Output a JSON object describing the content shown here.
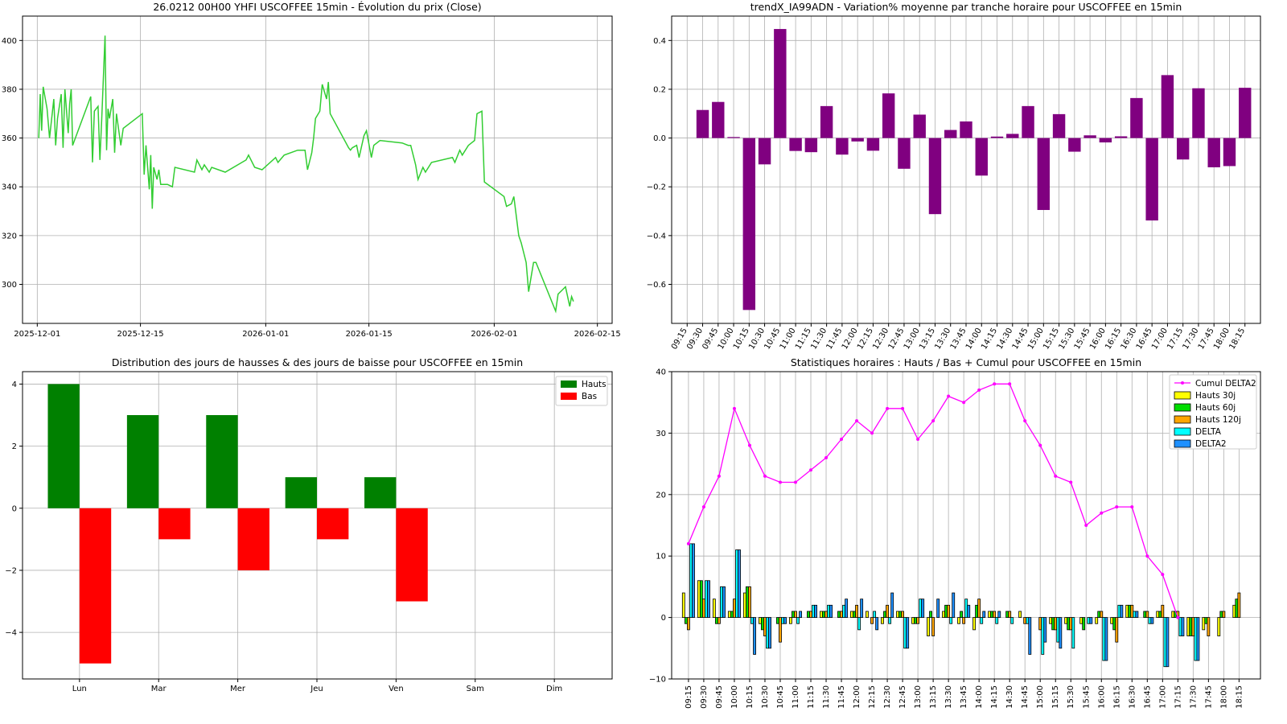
{
  "chart_data": [
    {
      "type": "line",
      "title": "26.0212 00H00 YHFI USCOFFEE 15min - Évolution du prix (Close)",
      "xlabel": "",
      "ylabel": "",
      "xlim": [
        "2025-11-29",
        "2026-02-17"
      ],
      "ylim": [
        284,
        410
      ],
      "x_ticks": [
        "2025-12-01",
        "2025-12-15",
        "2026-01-01",
        "2026-01-15",
        "2026-02-01",
        "2026-02-15"
      ],
      "y_ticks": [
        300,
        320,
        340,
        360,
        380,
        400
      ],
      "grid": true,
      "color": "#32cd32",
      "series": [
        {
          "x": [
            "2025-12-01",
            "2025-12-01",
            "2025-12-01",
            "2025-12-01",
            "2025-12-02",
            "2025-12-02",
            "2025-12-03",
            "2025-12-03",
            "2025-12-03",
            "2025-12-04",
            "2025-12-04",
            "2025-12-04",
            "2025-12-05",
            "2025-12-05",
            "2025-12-05",
            "2025-12-05",
            "2025-12-08",
            "2025-12-08",
            "2025-12-08",
            "2025-12-09",
            "2025-12-09",
            "2025-12-09",
            "2025-12-10",
            "2025-12-10",
            "2025-12-10",
            "2025-12-10",
            "2025-12-11",
            "2025-12-11",
            "2025-12-11",
            "2025-12-12",
            "2025-12-12",
            "2025-12-15",
            "2025-12-15",
            "2025-12-15",
            "2025-12-16",
            "2025-12-16",
            "2025-12-16",
            "2025-12-16",
            "2025-12-17",
            "2025-12-17",
            "2025-12-17",
            "2025-12-18",
            "2025-12-18",
            "2025-12-19",
            "2025-12-19",
            "2025-12-22",
            "2025-12-22",
            "2025-12-23",
            "2025-12-23",
            "2025-12-24",
            "2025-12-24",
            "2025-12-26",
            "2025-12-29",
            "2025-12-29",
            "2025-12-30",
            "2025-12-31",
            "2026-01-02",
            "2026-01-02",
            "2026-01-03",
            "2026-01-05",
            "2026-01-05",
            "2026-01-06",
            "2026-01-06",
            "2026-01-07",
            "2026-01-07",
            "2026-01-07",
            "2026-01-08",
            "2026-01-08",
            "2026-01-09",
            "2026-01-09",
            "2026-01-09",
            "2026-01-12",
            "2026-01-12",
            "2026-01-12",
            "2026-01-13",
            "2026-01-13",
            "2026-01-14",
            "2026-01-14",
            "2026-01-15",
            "2026-01-15",
            "2026-01-16",
            "2026-01-19",
            "2026-01-20",
            "2026-01-20",
            "2026-01-21",
            "2026-01-21",
            "2026-01-22",
            "2026-01-22",
            "2026-01-23",
            "2026-01-26",
            "2026-01-26",
            "2026-01-27",
            "2026-01-27",
            "2026-01-28",
            "2026-01-29",
            "2026-01-29",
            "2026-01-30",
            "2026-01-30",
            "2026-02-02",
            "2026-02-02",
            "2026-02-03",
            "2026-02-03",
            "2026-02-04",
            "2026-02-04",
            "2026-02-05",
            "2026-02-05",
            "2026-02-06",
            "2026-02-06",
            "2026-02-09",
            "2026-02-09",
            "2026-02-10",
            "2026-02-10",
            "2026-02-11",
            "2026-02-11",
            "2026-02-11"
          ],
          "y": [
            360,
            378,
            363,
            381,
            372,
            360,
            376,
            357,
            368,
            378,
            356,
            380,
            362,
            374,
            380,
            357,
            377,
            350,
            371,
            373,
            351,
            368,
            402,
            355,
            372,
            368,
            376,
            354,
            370,
            357,
            364,
            370,
            345,
            357,
            339,
            353,
            331,
            348,
            343,
            347,
            341,
            341,
            341,
            340,
            348,
            346,
            351,
            347,
            349,
            346,
            348,
            346,
            351,
            353,
            348,
            347,
            352,
            350,
            353,
            355,
            355,
            355,
            347,
            354,
            360,
            368,
            371,
            382,
            376,
            383,
            370,
            356,
            355,
            356,
            357,
            352,
            361,
            363,
            352,
            357,
            359,
            358,
            357,
            357,
            349,
            343,
            348,
            346,
            350,
            352,
            350,
            355,
            353,
            357,
            359,
            370,
            371,
            342,
            336,
            332,
            333,
            336,
            320,
            317,
            309,
            297,
            309,
            309,
            289,
            296,
            298,
            299,
            291,
            295,
            293
          ]
        }
      ]
    },
    {
      "type": "bar",
      "title": "trendX_IA99ADN - Variation% moyenne par tranche horaire pour USCOFFEE en 15min",
      "xlabel": "",
      "ylabel": "",
      "ylim": [
        -0.76,
        0.5
      ],
      "y_ticks": [
        -0.6,
        -0.4,
        -0.2,
        0.0,
        0.2,
        0.4
      ],
      "y_tick_labels": [
        "−0.6",
        "−0.4",
        "−0.2",
        "0.0",
        "0.2",
        "0.4"
      ],
      "grid": true,
      "color": "#800080",
      "categories": [
        "09:15",
        "09:30",
        "09:45",
        "10:00",
        "10:15",
        "10:30",
        "10:45",
        "11:00",
        "11:15",
        "11:30",
        "11:45",
        "12:00",
        "12:15",
        "12:30",
        "12:45",
        "13:00",
        "13:15",
        "13:30",
        "13:45",
        "14:00",
        "14:15",
        "14:30",
        "14:45",
        "15:00",
        "15:15",
        "15:30",
        "15:45",
        "16:00",
        "16:15",
        "16:30",
        "16:45",
        "17:00",
        "17:15",
        "17:30",
        "17:45",
        "18:00",
        "18:15"
      ],
      "values": [
        null,
        0.115,
        0.148,
        0.004,
        -0.705,
        -0.108,
        0.447,
        -0.053,
        -0.058,
        0.131,
        -0.068,
        -0.014,
        -0.052,
        0.183,
        -0.126,
        0.096,
        -0.312,
        0.033,
        0.068,
        -0.154,
        0.006,
        0.017,
        0.131,
        -0.295,
        0.098,
        -0.056,
        0.011,
        -0.018,
        0.007,
        0.164,
        -0.338,
        0.258,
        -0.088,
        0.204,
        -0.12,
        -0.115,
        0.206
      ]
    },
    {
      "type": "bar",
      "title": "Distribution des jours de hausses & des jours de baisse pour USCOFFEE en 15min",
      "xlabel": "",
      "ylabel": "",
      "ylim": [
        -5.5,
        4.4
      ],
      "y_ticks": [
        -4,
        -2,
        0,
        2,
        4
      ],
      "y_tick_labels": [
        "−4",
        "−2",
        "0",
        "2",
        "4"
      ],
      "grid": true,
      "legend_position": "top-right",
      "categories": [
        "Lun",
        "Mar",
        "Mer",
        "Jeu",
        "Ven",
        "Sam",
        "Dim"
      ],
      "series": [
        {
          "name": "Hauts",
          "color": "#008000",
          "values": [
            4,
            3,
            3,
            1,
            1,
            0,
            0
          ]
        },
        {
          "name": "Bas",
          "color": "#ff0000",
          "values": [
            -5,
            -1,
            -2,
            -1,
            -3,
            0,
            0
          ]
        }
      ]
    },
    {
      "type": "bar",
      "title": "Statistiques horaires : Hauts / Bas + Cumul pour USCOFFEE en 15min",
      "xlabel": "",
      "ylabel": "",
      "ylim": [
        -10,
        40
      ],
      "y_ticks": [
        -10,
        0,
        10,
        20,
        30,
        40
      ],
      "y_tick_labels": [
        "−10",
        "0",
        "10",
        "20",
        "30",
        "40"
      ],
      "grid": true,
      "legend_position": "top-right",
      "categories": [
        "09:15",
        "09:30",
        "09:45",
        "10:00",
        "10:15",
        "10:30",
        "10:45",
        "11:00",
        "11:15",
        "11:30",
        "11:45",
        "12:00",
        "12:15",
        "12:30",
        "12:45",
        "13:00",
        "13:15",
        "13:30",
        "13:45",
        "14:00",
        "14:15",
        "14:30",
        "14:45",
        "15:00",
        "15:15",
        "15:30",
        "15:45",
        "16:00",
        "16:15",
        "16:30",
        "16:45",
        "17:00",
        "17:15",
        "17:30",
        "17:45",
        "18:00",
        "18:15"
      ],
      "line_series": {
        "name": "Cumul DELTA2",
        "color": "#ff00ff",
        "values": [
          12,
          18,
          23,
          34,
          28,
          23,
          22,
          22,
          24,
          26,
          29,
          32,
          30,
          34,
          34,
          29,
          32,
          36,
          35,
          37,
          38,
          38,
          32,
          28,
          23,
          22,
          15,
          17,
          18,
          18,
          10,
          7,
          0,
          null,
          null,
          null,
          null
        ]
      },
      "bar_series": [
        {
          "name": "Hauts 30j",
          "color": "#ffff00",
          "values": [
            4,
            6,
            3,
            1,
            4,
            -1,
            0,
            -1,
            0,
            1,
            0,
            1,
            1,
            -1,
            1,
            -1,
            -3,
            1,
            -1,
            -2,
            1,
            0,
            1,
            0,
            -1,
            -1,
            -1,
            -1,
            -1,
            2,
            0,
            1,
            1,
            -3,
            -2,
            -3,
            2
          ]
        },
        {
          "name": "Hauts 60j",
          "color": "#00dd00",
          "values": [
            -1,
            6,
            -1,
            1,
            5,
            -2,
            -1,
            1,
            1,
            1,
            1,
            1,
            0,
            1,
            1,
            -1,
            1,
            2,
            1,
            2,
            1,
            1,
            0,
            0,
            -2,
            -2,
            -2,
            1,
            -2,
            2,
            1,
            1,
            1,
            -3,
            -1,
            1,
            3
          ]
        },
        {
          "name": "Hauts 120j",
          "color": "#ffa500",
          "values": [
            -2,
            3,
            -1,
            3,
            5,
            -3,
            -4,
            1,
            1,
            1,
            1,
            2,
            -1,
            2,
            1,
            -1,
            -3,
            2,
            -1,
            3,
            1,
            1,
            -1,
            -2,
            -2,
            -2,
            0,
            1,
            -4,
            2,
            1,
            2,
            1,
            -3,
            -3,
            1,
            4
          ]
        },
        {
          "name": "DELTA",
          "color": "#00ffff",
          "values": [
            12,
            6,
            5,
            11,
            -1,
            -5,
            -1,
            -1,
            2,
            2,
            2,
            -2,
            1,
            -1,
            -5,
            3,
            0,
            -1,
            3,
            -1,
            -1,
            -1,
            -1,
            -6,
            -4,
            -5,
            -1,
            -7,
            2,
            1,
            -1,
            -8,
            -3,
            -7,
            0,
            0,
            0
          ]
        },
        {
          "name": "DELTA2",
          "color": "#1e90ff",
          "values": [
            12,
            6,
            5,
            11,
            -6,
            -5,
            -1,
            1,
            2,
            2,
            3,
            3,
            -2,
            4,
            -5,
            3,
            3,
            4,
            2,
            1,
            1,
            0,
            -6,
            -4,
            -5,
            0,
            -1,
            -7,
            2,
            1,
            -1,
            -8,
            -3,
            -7,
            0,
            0,
            0
          ]
        }
      ]
    }
  ]
}
